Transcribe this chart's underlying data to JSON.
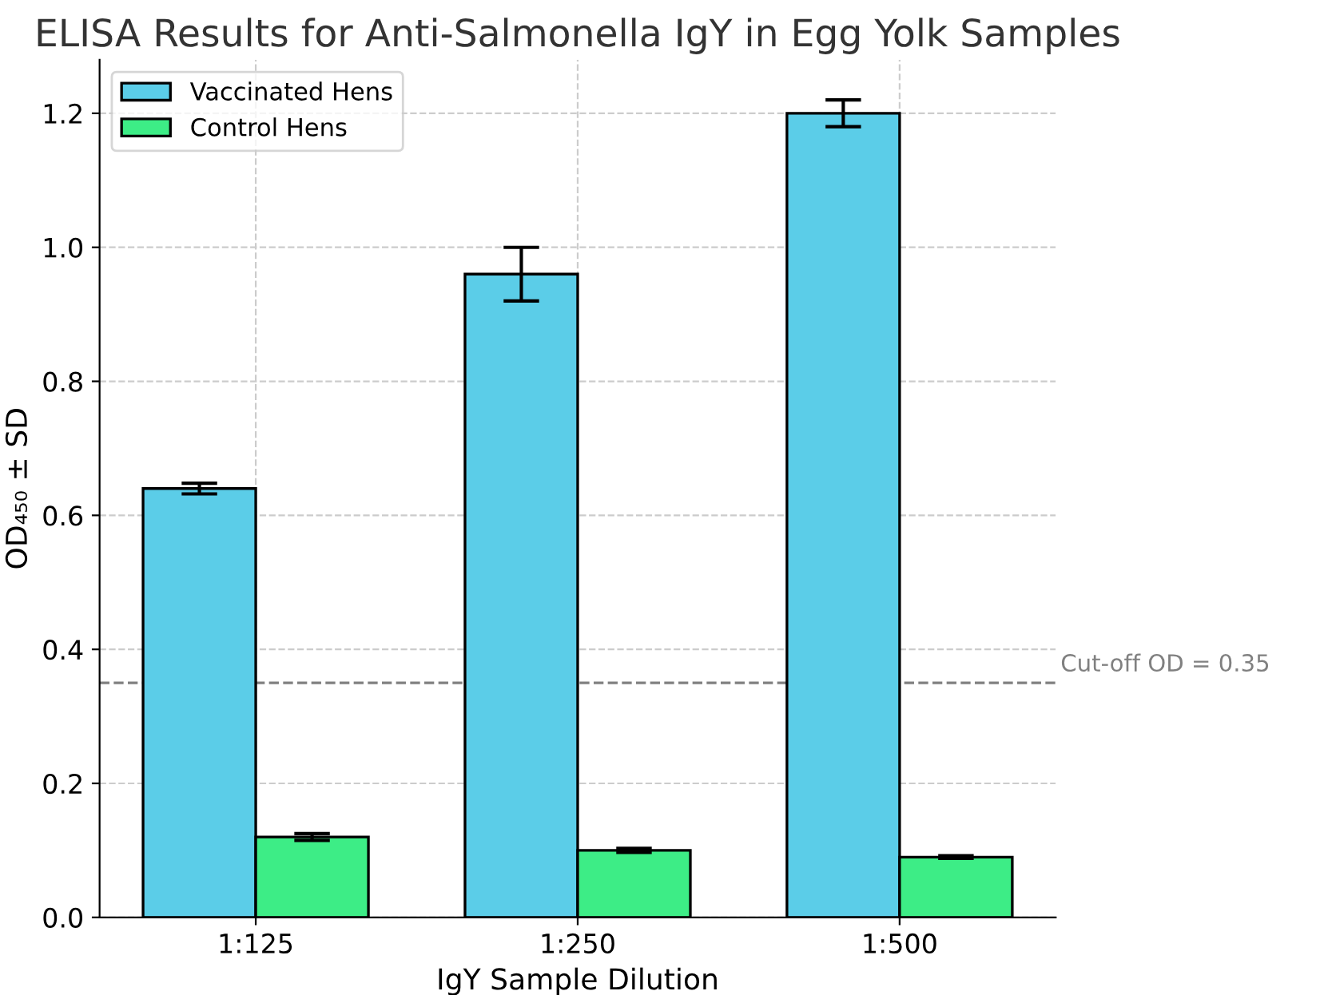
{
  "chart_data": {
    "type": "bar",
    "title": "ELISA Results for Anti-Salmonella IgY in Egg Yolk Samples",
    "xlabel": "IgY Sample Dilution",
    "ylabel": "OD₄₅₀ ± SD",
    "categories": [
      "1:125",
      "1:250",
      "1:500"
    ],
    "series": [
      {
        "name": "Vaccinated Hens",
        "color": "#5bcde8",
        "values": [
          0.64,
          0.96,
          1.2
        ],
        "errors": [
          0.008,
          0.04,
          0.02
        ]
      },
      {
        "name": "Control Hens",
        "color": "#3ded86",
        "values": [
          0.12,
          0.1,
          0.09
        ],
        "errors": [
          0.005,
          0.003,
          0.002
        ]
      }
    ],
    "ylim": [
      0,
      1.28
    ],
    "yticks": [
      {
        "value": 0,
        "label": "0.0"
      },
      0.2,
      0.4,
      0.6,
      0.8,
      {
        "value": 1.0,
        "label": "1.0"
      },
      1.2
    ],
    "ref_lines": [
      {
        "axis": "y",
        "value": 0.35,
        "label": "Cut-off OD = 0.35",
        "color": "#808080",
        "line_style": "dashed"
      }
    ],
    "grid": true,
    "legend": "top left"
  }
}
